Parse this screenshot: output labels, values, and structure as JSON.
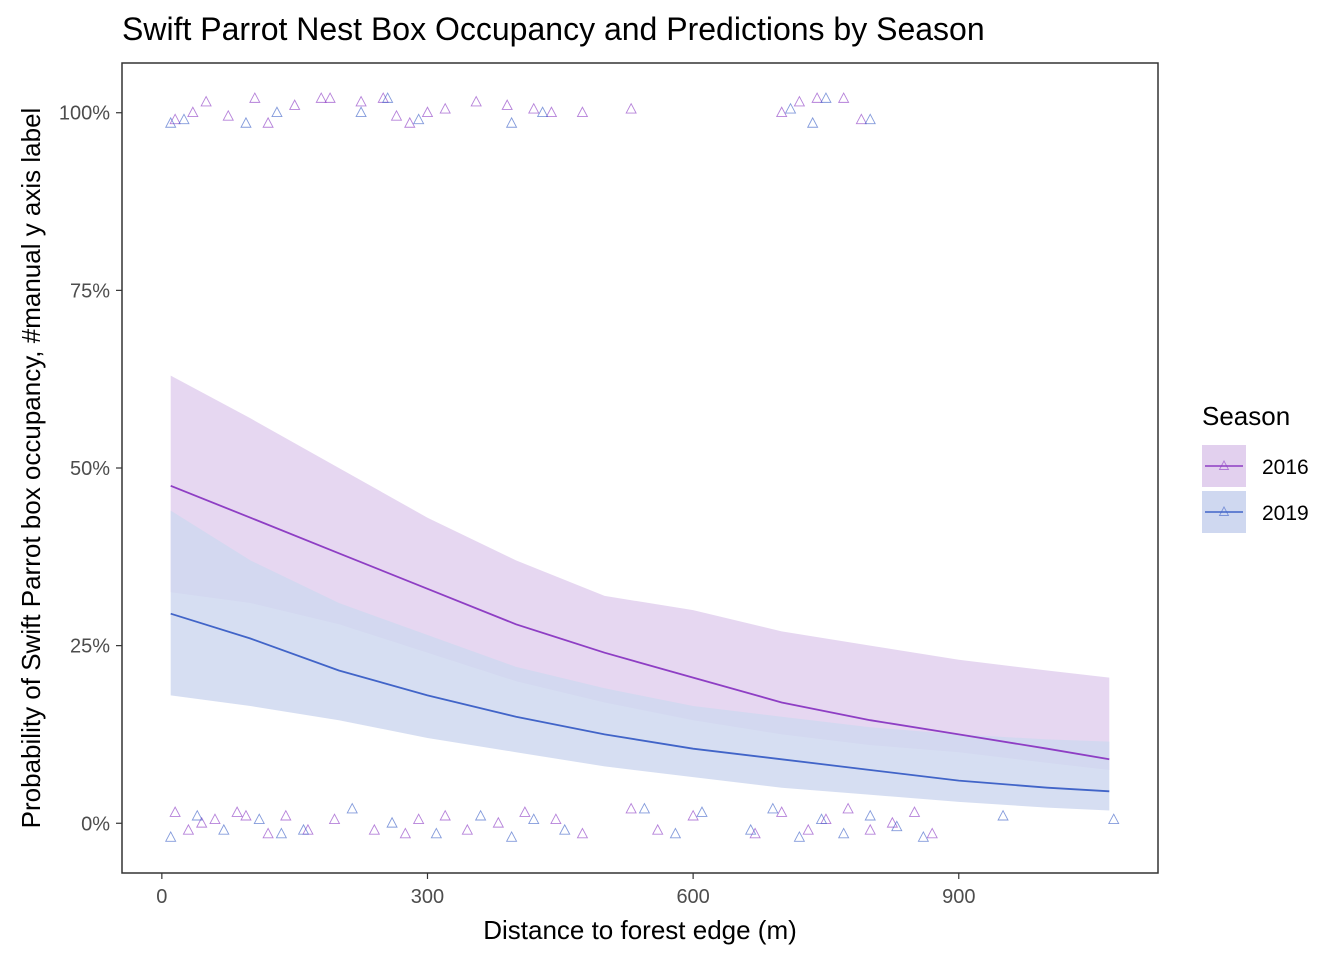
{
  "chart_data": {
    "type": "line",
    "title": "Swift Parrot Nest Box Occupancy and Predictions by Season",
    "xlabel": "Distance to forest edge (m)",
    "ylabel": "Probability of Swift Parrot box occupancy, #manual y axis label",
    "xlim": [
      -45,
      1125
    ],
    "ylim": [
      -0.07,
      1.07
    ],
    "x_ticks": [
      0,
      300,
      600,
      900
    ],
    "x_tick_labels": [
      "0",
      "300",
      "600",
      "900"
    ],
    "y_ticks": [
      0,
      0.25,
      0.5,
      0.75,
      1.0
    ],
    "y_tick_labels": [
      "0%",
      "25%",
      "50%",
      "75%",
      "100%"
    ],
    "grid": false,
    "legend": {
      "title": "Season",
      "position": "right"
    },
    "series": [
      {
        "name": "2016",
        "color": "#8E3EC4",
        "fill": "#E2D0EE",
        "x": [
          10,
          100,
          200,
          300,
          400,
          500,
          600,
          700,
          800,
          900,
          1000,
          1070
        ],
        "fit": [
          0.475,
          0.43,
          0.38,
          0.33,
          0.28,
          0.24,
          0.205,
          0.17,
          0.145,
          0.125,
          0.105,
          0.09
        ],
        "lower": [
          0.325,
          0.31,
          0.28,
          0.24,
          0.2,
          0.17,
          0.145,
          0.125,
          0.11,
          0.1,
          0.085,
          0.075
        ],
        "upper": [
          0.63,
          0.57,
          0.5,
          0.43,
          0.37,
          0.32,
          0.3,
          0.27,
          0.25,
          0.23,
          0.215,
          0.205
        ]
      },
      {
        "name": "2019",
        "color": "#4164C8",
        "fill": "#CFD8F0",
        "x": [
          10,
          100,
          200,
          300,
          400,
          500,
          600,
          700,
          800,
          900,
          1000,
          1070
        ],
        "fit": [
          0.295,
          0.26,
          0.215,
          0.18,
          0.15,
          0.125,
          0.105,
          0.09,
          0.075,
          0.06,
          0.05,
          0.045
        ],
        "lower": [
          0.18,
          0.165,
          0.145,
          0.12,
          0.1,
          0.08,
          0.065,
          0.05,
          0.04,
          0.03,
          0.022,
          0.018
        ],
        "upper": [
          0.44,
          0.37,
          0.31,
          0.265,
          0.22,
          0.19,
          0.165,
          0.15,
          0.135,
          0.125,
          0.118,
          0.115
        ]
      }
    ],
    "points": [
      {
        "season": "2016",
        "x": [
          15,
          35,
          50,
          75,
          105,
          120,
          150,
          180,
          190,
          225,
          250,
          265,
          280,
          300,
          320,
          355,
          390,
          420,
          440,
          475,
          530,
          700,
          720,
          740,
          770,
          790,
          15,
          30,
          45,
          60,
          85,
          95,
          120,
          140,
          165,
          195,
          240,
          275,
          290,
          320,
          345,
          380,
          410,
          445,
          475,
          530,
          560,
          600,
          670,
          700,
          730,
          750,
          775,
          800,
          825,
          850,
          870
        ],
        "y": [
          0.99,
          1.0,
          1.015,
          0.995,
          1.02,
          0.985,
          1.01,
          1.02,
          1.02,
          1.015,
          1.02,
          0.995,
          0.985,
          1.0,
          1.005,
          1.015,
          1.01,
          1.005,
          1.0,
          1.0,
          1.005,
          1.0,
          1.015,
          1.02,
          1.02,
          0.99,
          0.015,
          -0.01,
          0.0,
          0.005,
          0.015,
          0.01,
          -0.015,
          0.01,
          -0.01,
          0.005,
          -0.01,
          -0.015,
          0.005,
          0.01,
          -0.01,
          0.0,
          0.015,
          0.005,
          -0.015,
          0.02,
          -0.01,
          0.01,
          -0.015,
          0.015,
          -0.01,
          0.005,
          0.02,
          -0.01,
          0.0,
          0.015,
          -0.015
        ]
      },
      {
        "season": "2019",
        "x": [
          10,
          25,
          95,
          130,
          225,
          255,
          290,
          395,
          430,
          710,
          735,
          750,
          800,
          10,
          40,
          70,
          110,
          135,
          160,
          215,
          260,
          310,
          360,
          395,
          420,
          455,
          545,
          580,
          610,
          665,
          690,
          720,
          745,
          770,
          800,
          830,
          860,
          950,
          1075
        ],
        "y": [
          0.985,
          0.99,
          0.985,
          1.0,
          1.0,
          1.02,
          0.99,
          0.985,
          1.0,
          1.005,
          0.985,
          1.02,
          0.99,
          -0.02,
          0.01,
          -0.01,
          0.005,
          -0.015,
          -0.01,
          0.02,
          0.0,
          -0.015,
          0.01,
          -0.02,
          0.005,
          -0.01,
          0.02,
          -0.015,
          0.015,
          -0.01,
          0.02,
          -0.02,
          0.005,
          -0.015,
          0.01,
          -0.005,
          -0.02,
          0.01,
          0.005
        ]
      }
    ]
  }
}
